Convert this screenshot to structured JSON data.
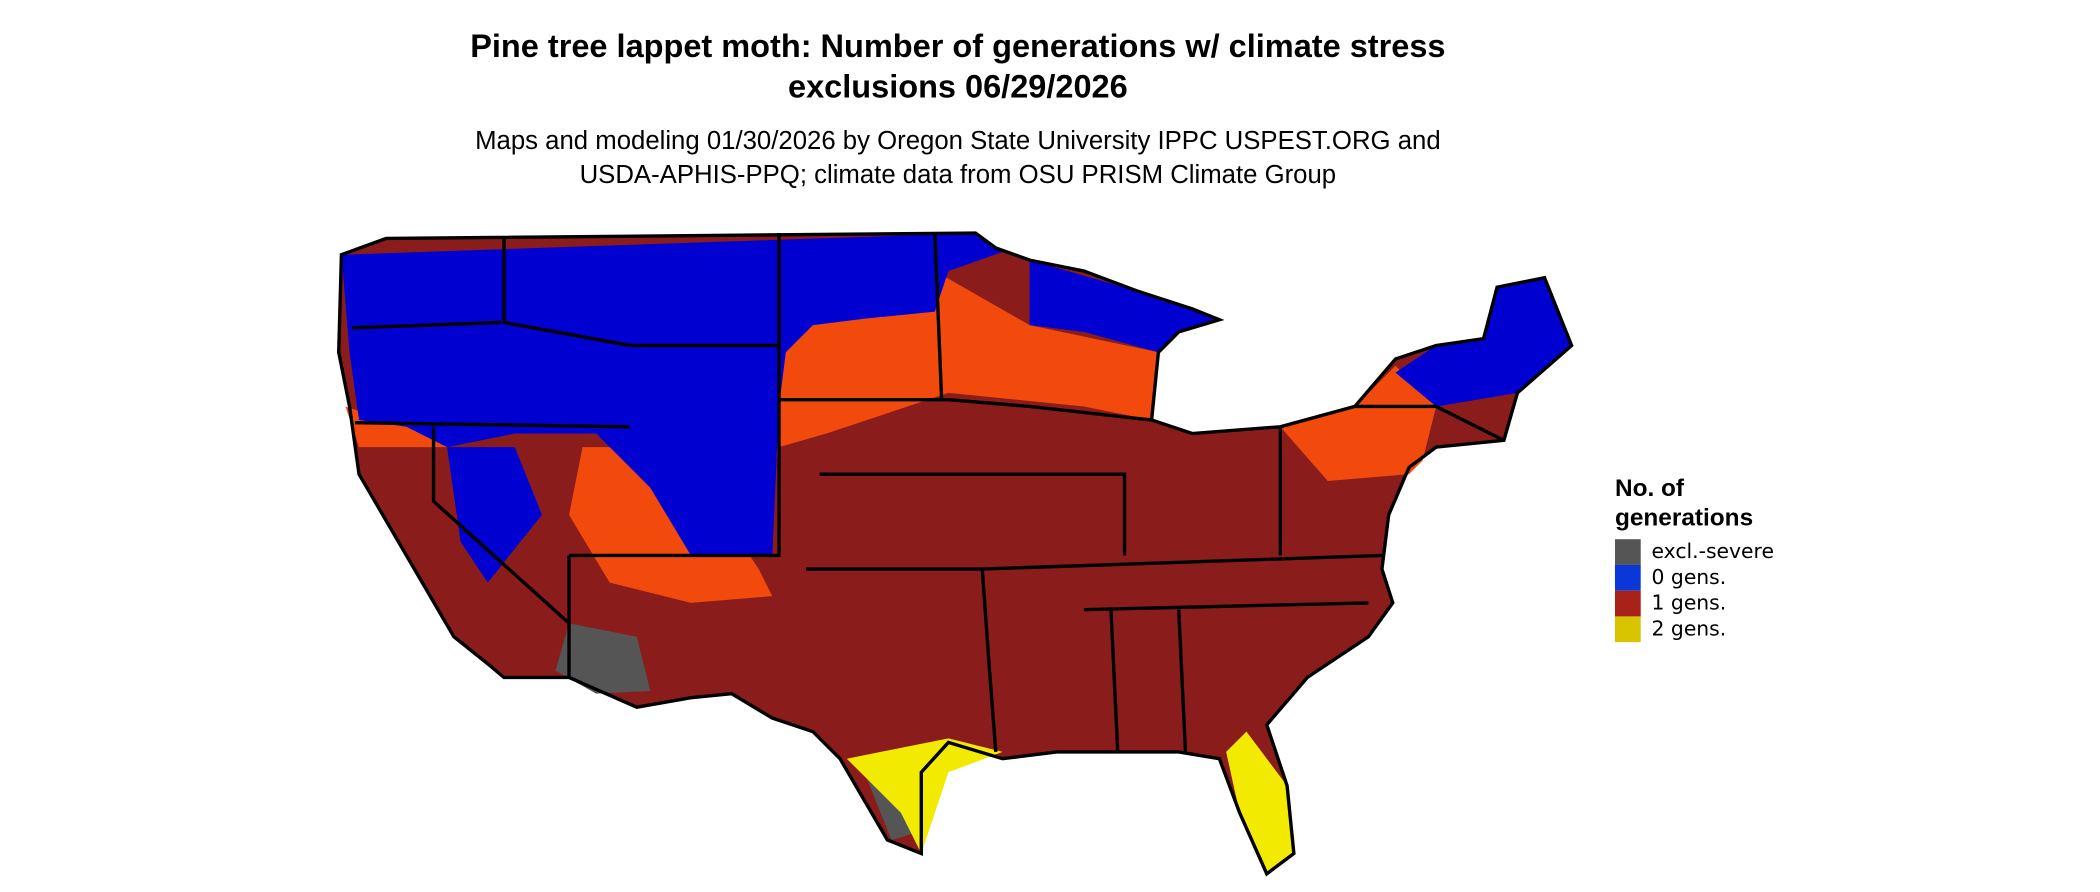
{
  "title": [
    "Pine tree lappet moth: Number of generations w/ climate stress",
    "exclusions 06/29/2026"
  ],
  "subtitle": [
    "Maps and modeling 01/30/2026 by Oregon State University IPPC USPEST.ORG and",
    "USDA-APHIS-PPQ; climate data from OSU PRISM Climate Group"
  ],
  "legend": {
    "title": [
      "No. of",
      "generations"
    ],
    "items": [
      {
        "label": "excl.-severe",
        "color": "#555555"
      },
      {
        "label": "0 gens.",
        "color": "#0a37d8"
      },
      {
        "label": "1 gens.",
        "color": "#a8221a"
      },
      {
        "label": "2 gens.",
        "color": "#d9c400"
      }
    ]
  }
}
